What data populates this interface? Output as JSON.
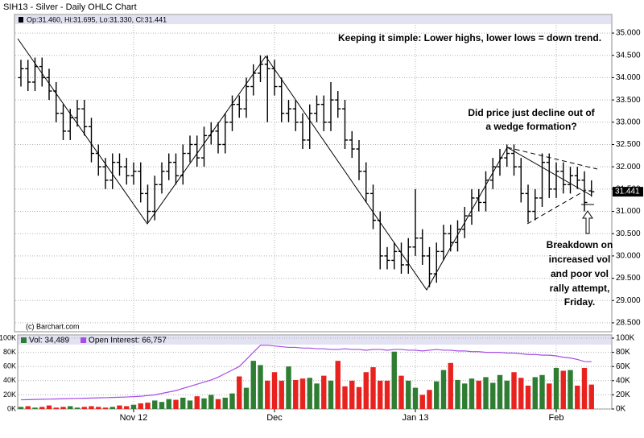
{
  "chart_data": [
    {
      "type": "ohlc",
      "title": "SIH13 - Silver - Daily OHLC Chart",
      "legend_text": "Op:31.460, Hi:31.695, Lo:31.330, Cl:31.441",
      "credit": "(c) Barchart.com",
      "annotations": [
        [
          "Keeping it simple:  Lower highs, lower lows = down trend."
        ],
        [
          "Did price just decline out of",
          "a wedge formation?"
        ],
        [
          "Breakdown on",
          "increased vol",
          "and poor vol",
          "rally attempt,",
          "Friday."
        ]
      ],
      "color": "#000000",
      "grid": true,
      "ylim": [
        28.3,
        35.2
      ],
      "yticks": [
        {
          "value": 28.5,
          "label": "28.500"
        },
        {
          "value": 29,
          "label": "29.000"
        },
        {
          "value": 29.5,
          "label": "29.500"
        },
        {
          "value": 30,
          "label": "30.000"
        },
        {
          "value": 30.5,
          "label": "30.500"
        },
        {
          "value": 31,
          "label": "31.000"
        },
        {
          "value": 31.5,
          "label": "31.500"
        },
        {
          "value": 32,
          "label": "32.000"
        },
        {
          "value": 32.5,
          "label": "32.500"
        },
        {
          "value": 33,
          "label": "33.000"
        },
        {
          "value": 33.5,
          "label": "33.500"
        },
        {
          "value": 34,
          "label": "34.000"
        },
        {
          "value": 34.5,
          "label": "34.500"
        },
        {
          "value": 35,
          "label": "35.000"
        }
      ],
      "open": [
        34.0,
        34.2,
        33.9,
        34.25,
        34.0,
        33.7,
        33.2,
        32.8,
        33.1,
        33.3,
        32.9,
        32.3,
        32.0,
        31.7,
        32.1,
        32.0,
        31.8,
        31.9,
        31.4,
        31.0,
        31.6,
        31.9,
        32.1,
        31.8,
        32.3,
        32.5,
        32.2,
        32.7,
        32.8,
        32.5,
        33.0,
        33.4,
        33.3,
        33.8,
        34.1,
        34.3,
        34.2,
        33.8,
        33.2,
        33.3,
        33.0,
        32.6,
        33.2,
        33.4,
        33.0,
        33.5,
        33.3,
        32.6,
        32.4,
        31.9,
        31.4,
        30.8,
        30.0,
        29.9,
        30.1,
        29.8,
        30.2,
        30.4,
        30.0,
        29.6,
        30.1,
        30.5,
        30.3,
        30.6,
        30.9,
        31.3,
        31.2,
        31.7,
        32.0,
        32.2,
        32.3,
        32.0,
        31.4,
        31.0,
        31.3,
        32.1,
        31.5,
        31.9,
        31.6,
        31.8,
        31.7,
        31.46
      ],
      "high": [
        34.4,
        34.4,
        34.45,
        34.45,
        34.2,
        33.9,
        33.4,
        33.3,
        33.5,
        33.5,
        33.1,
        32.5,
        32.2,
        32.3,
        32.3,
        32.2,
        32.1,
        32.1,
        31.6,
        31.8,
        32.1,
        32.3,
        32.3,
        32.5,
        32.7,
        32.7,
        32.9,
        33.0,
        33.0,
        33.2,
        33.6,
        33.6,
        34.0,
        34.3,
        34.5,
        34.5,
        34.4,
        34.0,
        33.5,
        33.5,
        33.2,
        33.4,
        33.6,
        33.6,
        33.9,
        33.7,
        33.5,
        32.8,
        32.6,
        32.1,
        31.6,
        31.0,
        30.2,
        30.3,
        30.3,
        30.4,
        31.5,
        30.6,
        30.2,
        30.3,
        30.7,
        30.7,
        30.8,
        31.1,
        31.5,
        31.5,
        31.9,
        32.2,
        32.4,
        32.5,
        32.5,
        32.2,
        31.6,
        31.5,
        32.3,
        32.3,
        32.1,
        32.1,
        32.0,
        32.0,
        31.9,
        31.695
      ],
      "low": [
        33.8,
        33.7,
        33.7,
        33.8,
        33.5,
        33.0,
        32.6,
        32.6,
        32.9,
        32.7,
        32.1,
        31.8,
        31.5,
        31.5,
        31.8,
        31.6,
        31.6,
        31.2,
        30.75,
        30.8,
        31.4,
        31.7,
        31.6,
        31.6,
        32.1,
        32.0,
        32.0,
        32.5,
        32.3,
        32.3,
        32.8,
        33.1,
        33.1,
        33.6,
        33.9,
        33.0,
        33.6,
        33.0,
        33.0,
        32.8,
        32.4,
        32.4,
        33.0,
        32.8,
        32.8,
        33.1,
        32.4,
        32.2,
        31.7,
        31.2,
        30.6,
        29.7,
        29.7,
        29.7,
        29.6,
        29.6,
        30.0,
        29.8,
        29.3,
        29.4,
        29.9,
        30.1,
        30.1,
        30.4,
        30.7,
        31.0,
        31.0,
        31.5,
        31.8,
        32.0,
        31.8,
        31.2,
        30.75,
        30.8,
        31.1,
        31.3,
        31.3,
        31.4,
        31.4,
        31.5,
        31.0,
        31.33
      ],
      "close": [
        34.2,
        33.9,
        34.25,
        34.0,
        33.7,
        33.2,
        32.8,
        33.1,
        33.3,
        32.9,
        32.3,
        32.0,
        31.7,
        32.1,
        32.0,
        31.8,
        31.9,
        31.4,
        31.0,
        31.6,
        31.9,
        32.1,
        31.8,
        32.3,
        32.5,
        32.2,
        32.7,
        32.8,
        32.5,
        33.0,
        33.4,
        33.3,
        33.8,
        34.1,
        34.3,
        34.2,
        33.8,
        33.2,
        33.3,
        33.0,
        32.6,
        33.2,
        33.4,
        33.0,
        33.5,
        33.3,
        32.6,
        32.4,
        31.9,
        31.4,
        30.8,
        30.0,
        29.9,
        30.1,
        29.8,
        30.2,
        30.4,
        30.0,
        29.6,
        30.1,
        30.5,
        30.3,
        30.6,
        30.9,
        31.3,
        31.2,
        31.7,
        32.0,
        32.2,
        32.3,
        32.0,
        31.4,
        31.0,
        31.3,
        32.1,
        31.5,
        31.9,
        31.6,
        31.8,
        31.7,
        31.2,
        31.441
      ]
    },
    {
      "type": "bar",
      "categories": [
        null,
        null,
        null,
        null,
        null,
        null,
        null,
        null,
        null,
        null,
        null,
        null,
        null,
        null,
        null,
        null,
        "Nov 12",
        null,
        null,
        null,
        null,
        null,
        null,
        null,
        null,
        null,
        null,
        null,
        null,
        null,
        null,
        null,
        null,
        null,
        null,
        null,
        "Dec",
        null,
        null,
        null,
        null,
        null,
        null,
        null,
        null,
        null,
        null,
        null,
        null,
        null,
        null,
        null,
        null,
        null,
        null,
        null,
        "Jan 13",
        null,
        null,
        null,
        null,
        null,
        null,
        null,
        null,
        null,
        null,
        null,
        null,
        null,
        null,
        null,
        null,
        null,
        null,
        null,
        "Feb",
        null,
        null,
        null,
        null,
        null
      ],
      "ylim": [
        0,
        100000
      ],
      "yticks": [
        {
          "value": 0,
          "label": "0K"
        },
        {
          "value": 20000,
          "label": "20K"
        },
        {
          "value": 40000,
          "label": "40K"
        },
        {
          "value": 60000,
          "label": "60K"
        },
        {
          "value": 80000,
          "label": "80K"
        },
        {
          "value": 100000,
          "label": "100K"
        }
      ],
      "y2lim": [
        0,
        100000
      ],
      "y2ticks": [
        {
          "value": 0,
          "label": "0K"
        },
        {
          "value": 20000,
          "label": "20K"
        },
        {
          "value": 40000,
          "label": "40K"
        },
        {
          "value": 60000,
          "label": "60K"
        },
        {
          "value": 80000,
          "label": "80K"
        },
        {
          "value": 100000,
          "label": "100K"
        }
      ],
      "series": [
        {
          "name": "Vol: 34,489",
          "color": "#2e7d32",
          "down_color": "#e8231f",
          "values": [
            3000,
            4000,
            2000,
            3000,
            5000,
            2000,
            3000,
            4000,
            2000,
            3000,
            4000,
            3000,
            2000,
            3000,
            5000,
            4000,
            6000,
            8000,
            9000,
            12000,
            10000,
            14000,
            13000,
            16000,
            12000,
            18000,
            15000,
            20000,
            14000,
            16000,
            22000,
            46000,
            30000,
            68000,
            62000,
            40000,
            52000,
            40000,
            60000,
            41000,
            43000,
            44000,
            36000,
            47000,
            40000,
            68000,
            32000,
            40000,
            31000,
            52000,
            59000,
            40000,
            40000,
            81000,
            47000,
            40000,
            30000,
            20000,
            27000,
            39000,
            55000,
            65000,
            41000,
            36000,
            43000,
            40000,
            45000,
            37000,
            48000,
            40000,
            52000,
            44000,
            33000,
            45000,
            48000,
            36000,
            58000,
            54000,
            55000,
            33000,
            58000,
            34489
          ]
        },
        {
          "name": "Open Interest: 66,757",
          "color": "#a64de6",
          "axis": "y2",
          "values": [
            13000,
            13200,
            13500,
            13800,
            14000,
            14200,
            14500,
            14800,
            15000,
            15200,
            15500,
            15800,
            16000,
            16300,
            16600,
            17000,
            17500,
            18000,
            19000,
            20000,
            22000,
            24000,
            26000,
            29000,
            32000,
            35000,
            38000,
            41000,
            45000,
            50000,
            55000,
            60000,
            70000,
            80000,
            90000,
            90000,
            89000,
            88000,
            87000,
            87000,
            86000,
            86000,
            85000,
            85000,
            84000,
            84000,
            85000,
            84000,
            84000,
            83000,
            84000,
            84000,
            83000,
            84000,
            84000,
            83000,
            83000,
            82000,
            83000,
            84000,
            83000,
            83000,
            82000,
            82000,
            81000,
            81000,
            80000,
            80000,
            80000,
            79000,
            79000,
            78000,
            77000,
            77000,
            76000,
            76000,
            75000,
            73000,
            72000,
            70000,
            67000,
            66757
          ]
        }
      ]
    }
  ]
}
